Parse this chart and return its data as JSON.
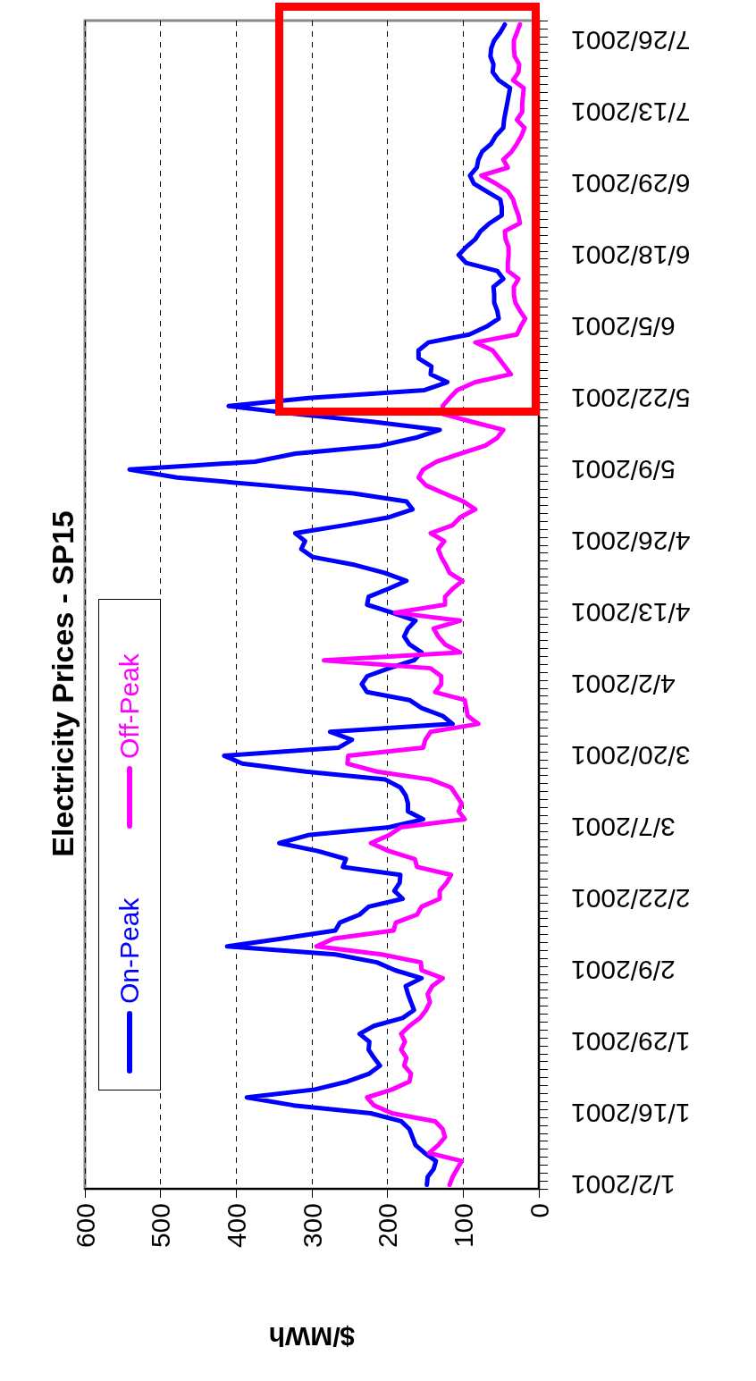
{
  "chart_data": {
    "type": "line",
    "orientation": "horizontal",
    "title": "Electricity Prices - SP15",
    "xlabel": "$/MWh",
    "categories": [
      null,
      null,
      "7/26/2001",
      null,
      null,
      null,
      null,
      null,
      null,
      null,
      null,
      "7/13/2001",
      null,
      null,
      null,
      null,
      null,
      null,
      null,
      null,
      "6/29/2001",
      null,
      null,
      null,
      null,
      null,
      null,
      null,
      null,
      "6/18/2001",
      null,
      null,
      null,
      null,
      null,
      null,
      null,
      null,
      "6/5/2001",
      null,
      null,
      null,
      null,
      null,
      null,
      null,
      null,
      "5/22/2001",
      null,
      null,
      null,
      null,
      null,
      null,
      null,
      null,
      "5/9/2001",
      null,
      null,
      null,
      null,
      null,
      null,
      null,
      null,
      "4/26/2001",
      null,
      null,
      null,
      null,
      null,
      null,
      null,
      null,
      "4/13/2001",
      null,
      null,
      null,
      null,
      null,
      null,
      null,
      null,
      "4/2/2001",
      null,
      null,
      null,
      null,
      null,
      null,
      null,
      null,
      "3/20/2001",
      null,
      null,
      null,
      null,
      null,
      null,
      null,
      null,
      "3/7/2001",
      null,
      null,
      null,
      null,
      null,
      null,
      null,
      null,
      "2/22/2001",
      null,
      null,
      null,
      null,
      null,
      null,
      null,
      null,
      "2/9/2001",
      null,
      null,
      null,
      null,
      null,
      null,
      null,
      null,
      "1/29/2001",
      null,
      null,
      null,
      null,
      null,
      null,
      null,
      null,
      "1/16/2001",
      null,
      null,
      null,
      null,
      null,
      null,
      null,
      null,
      "1/2/2001"
    ],
    "series": [
      {
        "name": "On-Peak",
        "color": "#0000ff",
        "values": [
          45,
          51,
          59,
          63,
          64,
          60,
          61,
          53,
          38,
          40,
          42,
          44,
          46,
          47,
          57,
          63,
          75,
          80,
          82,
          91,
          86,
          69,
          51,
          49,
          49,
          65,
          77,
          84,
          96,
          106,
          96,
          55,
          47,
          60,
          59,
          59,
          55,
          53,
          69,
          92,
          146,
          159,
          159,
          142,
          143,
          121,
          151,
          304,
          410,
          322,
          218,
          131,
          163,
          210,
          322,
          375,
          541,
          478,
          359,
          245,
          175,
          167,
          198,
          257,
          322,
          309,
          314,
          299,
          243,
          204,
          175,
          199,
          225,
          227,
          194,
          163,
          173,
          178,
          171,
          155,
          165,
          198,
          227,
          234,
          227,
          171,
          155,
          127,
          114,
          276,
          247,
          265,
          416,
          392,
          308,
          203,
          183,
          176,
          173,
          173,
          153,
          198,
          305,
          343,
          292,
          255,
          259,
          183,
          184,
          191,
          180,
          225,
          237,
          263,
          269,
          339,
          412,
          269,
          214,
          190,
          155,
          176,
          173,
          169,
          165,
          180,
          218,
          237,
          224,
          225,
          218,
          210,
          224,
          253,
          296,
          386,
          324,
          222,
          182,
          171,
          167,
          163,
          151,
          136,
          139,
          147,
          148
        ]
      },
      {
        "name": "Off-Peak",
        "color": "#ff00ff",
        "values": [
          25,
          29,
          33,
          33,
          32,
          26,
          27,
          34,
          20,
          21,
          22,
          22,
          29,
          19,
          23,
          29,
          36,
          47,
          41,
          76,
          57,
          41,
          34,
          31,
          27,
          25,
          45,
          44,
          40,
          40,
          41,
          41,
          27,
          33,
          33,
          31,
          25,
          18,
          24,
          29,
          84,
          61,
          53,
          45,
          37,
          84,
          108,
          118,
          127,
          127,
          88,
          47,
          55,
          71,
          104,
          135,
          153,
          159,
          149,
          125,
          100,
          84,
          104,
          114,
          143,
          125,
          133,
          129,
          123,
          118,
          101,
          114,
          124,
          124,
          190,
          104,
          139,
          133,
          124,
          104,
          284,
          143,
          129,
          129,
          137,
          98,
          96,
          94,
          80,
          143,
          150,
          153,
          252,
          253,
          214,
          143,
          116,
          109,
          102,
          106,
          98,
          182,
          198,
          222,
          198,
          164,
          161,
          116,
          122,
          131,
          131,
          155,
          161,
          189,
          192,
          271,
          294,
          208,
          156,
          155,
          127,
          141,
          147,
          144,
          149,
          157,
          171,
          182,
          177,
          182,
          175,
          178,
          169,
          171,
          194,
          227,
          218,
          194,
          137,
          127,
          124,
          133,
          145,
          102,
          108,
          114,
          118
        ]
      }
    ],
    "xlim": [
      600,
      0
    ],
    "xticks": [
      600,
      500,
      400,
      300,
      200,
      100,
      0
    ],
    "grid": "x",
    "legend": "left",
    "marker": "none",
    "line_style": "solid"
  }
}
